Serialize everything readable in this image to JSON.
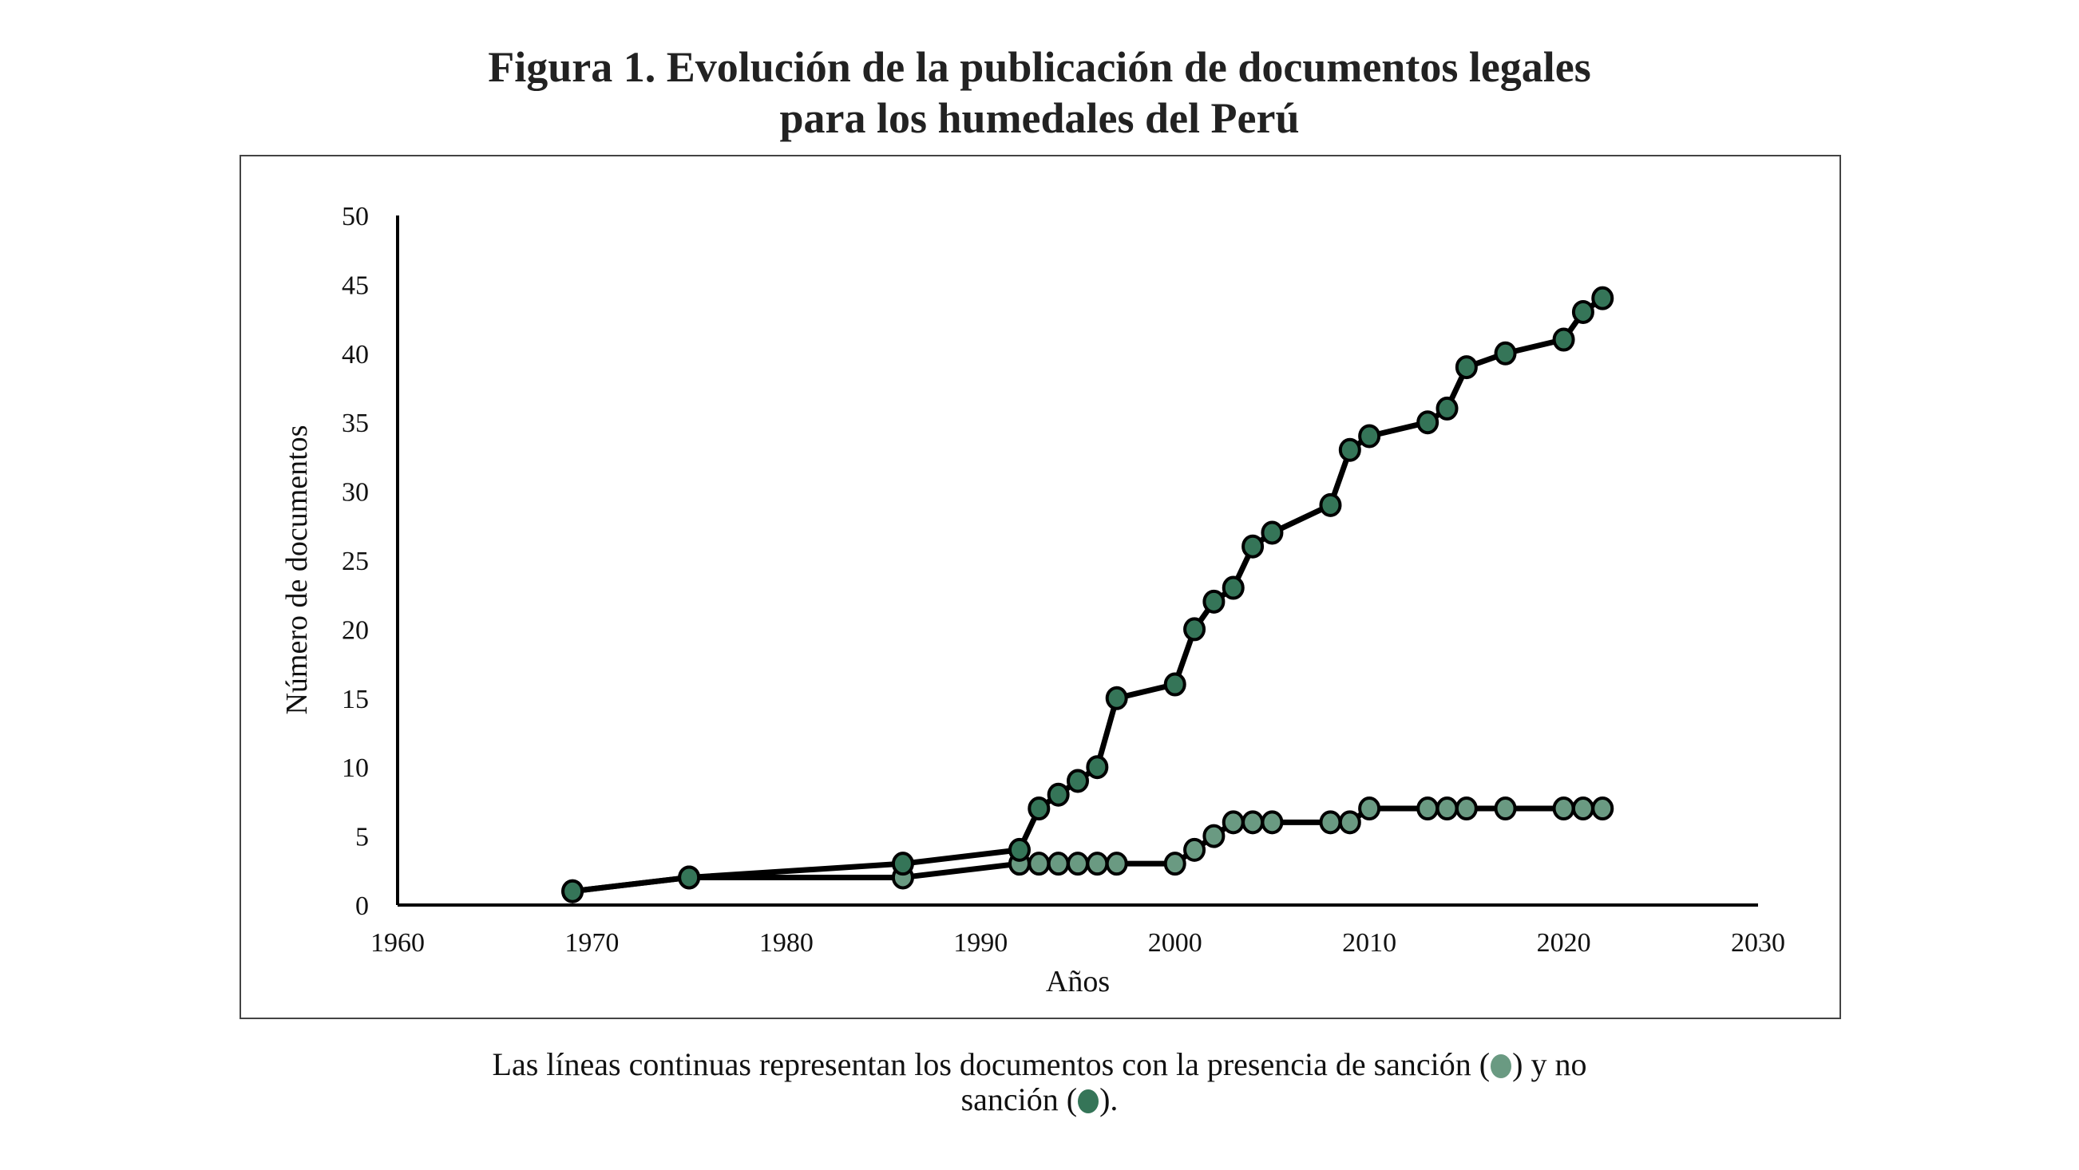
{
  "title_line1": "Figura 1. Evolución de la publicación de documentos legales",
  "title_line2": "para los humedales del Perú",
  "caption": {
    "part1": "Las líneas continuas representan los documentos con la presencia de sanción (",
    "part2": ") y no",
    "part3": "sanción (",
    "part4": ").",
    "sancion_color": "#6a9a82",
    "no_sancion_color": "#357558"
  },
  "chart_data": {
    "type": "line",
    "title": "Figura 1. Evolución de la publicación de documentos legales para los humedales del Perú",
    "xlabel": "Años",
    "ylabel": "Número de documentos",
    "xlim": [
      1960,
      2030
    ],
    "ylim": [
      0,
      50
    ],
    "xticks": [
      1960,
      1970,
      1980,
      1990,
      2000,
      2010,
      2020,
      2030
    ],
    "yticks": [
      0,
      5,
      10,
      15,
      20,
      25,
      30,
      35,
      40,
      45,
      50
    ],
    "grid": false,
    "legend": "caption-below",
    "series": [
      {
        "name": "Presencia de sanción",
        "color": "#6a9a82",
        "x": [
          1969,
          1975,
          1986,
          1992,
          1993,
          1994,
          1995,
          1996,
          1997,
          2000,
          2001,
          2002,
          2003,
          2004,
          2005,
          2008,
          2009,
          2010,
          2013,
          2014,
          2015,
          2017,
          2020,
          2021,
          2022
        ],
        "y": [
          1,
          2,
          2,
          3,
          3,
          3,
          3,
          3,
          3,
          3,
          4,
          5,
          6,
          6,
          6,
          6,
          6,
          7,
          7,
          7,
          7,
          7,
          7,
          7,
          7
        ]
      },
      {
        "name": "No sanción",
        "color": "#357558",
        "x": [
          1969,
          1975,
          1986,
          1992,
          1993,
          1994,
          1995,
          1996,
          1997,
          2000,
          2001,
          2002,
          2003,
          2004,
          2005,
          2008,
          2009,
          2010,
          2013,
          2014,
          2015,
          2017,
          2020,
          2021,
          2022
        ],
        "y": [
          1,
          2,
          3,
          4,
          7,
          8,
          9,
          10,
          15,
          16,
          20,
          22,
          23,
          26,
          27,
          29,
          33,
          34,
          35,
          36,
          39,
          40,
          41,
          43,
          44
        ]
      }
    ]
  }
}
